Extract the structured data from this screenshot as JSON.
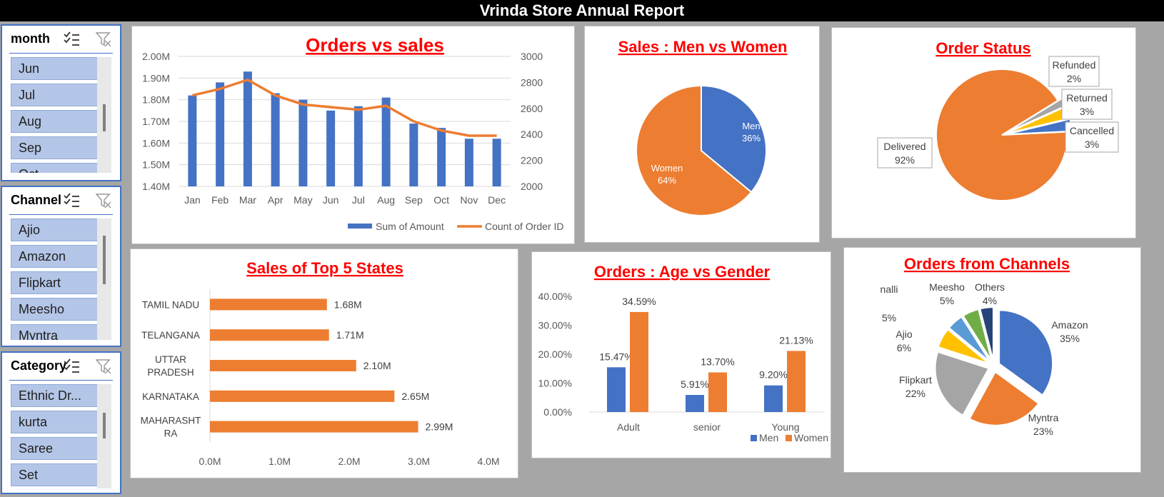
{
  "report_title": "Vrinda Store Annual Report",
  "slicers": {
    "month": {
      "title": "month",
      "items": [
        "Jun",
        "Jul",
        "Aug",
        "Sep",
        "Oct"
      ]
    },
    "channel": {
      "title": "Channel",
      "items": [
        "Ajio",
        "Amazon",
        "Flipkart",
        "Meesho",
        "Myntra"
      ]
    },
    "category": {
      "title": "Category",
      "items": [
        "Ethnic Dr...",
        "kurta",
        "Saree",
        "Set"
      ]
    }
  },
  "colors": {
    "blue": "#4472c4",
    "orange": "#ed7d31",
    "gray": "#a5a5a5",
    "yellow": "#ffc000",
    "lightblue": "#5b9bd5",
    "green": "#70ad47",
    "darkblue": "#264478",
    "title_red": "#ff0000"
  },
  "chart_data": [
    {
      "id": "orders_vs_sales",
      "type": "bar",
      "title": "Orders vs sales",
      "categories": [
        "Jan",
        "Feb",
        "Mar",
        "Apr",
        "May",
        "Jun",
        "Jul",
        "Aug",
        "Sep",
        "Oct",
        "Nov",
        "Dec"
      ],
      "series": [
        {
          "name": "Sum of Amount",
          "kind": "bar",
          "axis": "left",
          "values": [
            1.82,
            1.88,
            1.93,
            1.83,
            1.8,
            1.75,
            1.77,
            1.81,
            1.69,
            1.67,
            1.62,
            1.62
          ]
        },
        {
          "name": "Count of Order ID",
          "kind": "line",
          "axis": "right",
          "values": [
            2700,
            2750,
            2820,
            2700,
            2630,
            2610,
            2590,
            2620,
            2500,
            2430,
            2390,
            2390
          ]
        }
      ],
      "y_left": {
        "min": 1.4,
        "max": 2.0,
        "ticks": [
          "1.40M",
          "1.50M",
          "1.60M",
          "1.70M",
          "1.80M",
          "1.90M",
          "2.00M"
        ]
      },
      "y_right": {
        "min": 2000,
        "max": 3000,
        "ticks": [
          "2000",
          "2200",
          "2400",
          "2600",
          "2800",
          "3000"
        ]
      },
      "legend": "bottom-right"
    },
    {
      "id": "sales_men_women",
      "type": "pie",
      "title": "Sales : Men vs Women",
      "slices": [
        {
          "name": "Men",
          "value": 36,
          "label": "36%"
        },
        {
          "name": "Women",
          "value": 64,
          "label": "64%"
        }
      ]
    },
    {
      "id": "order_status",
      "type": "pie",
      "title": "Order Status",
      "slices": [
        {
          "name": "Delivered",
          "value": 92,
          "label": "92%"
        },
        {
          "name": "Refunded",
          "value": 2,
          "label": "2%"
        },
        {
          "name": "Returned",
          "value": 3,
          "label": "3%"
        },
        {
          "name": "Cancelled",
          "value": 3,
          "label": "3%"
        }
      ]
    },
    {
      "id": "top_states",
      "type": "bar",
      "orientation": "horizontal",
      "title": "Sales of Top 5 States",
      "categories": [
        "TAMIL NADU",
        "TELANGANA",
        "UTTAR PRADESH",
        "KARNATAKA",
        "MAHARASHTRA"
      ],
      "category_labels": [
        [
          "TAMIL NADU"
        ],
        [
          "TELANGANA"
        ],
        [
          "UTTAR",
          "PRADESH"
        ],
        [
          "KARNATAKA"
        ],
        [
          "MAHARASHT",
          "RA"
        ]
      ],
      "values": [
        1.68,
        1.71,
        2.1,
        2.65,
        2.99
      ],
      "data_labels": [
        "1.68M",
        "1.71M",
        "2.10M",
        "2.65M",
        "2.99M"
      ],
      "x_ticks": [
        "0.0M",
        "1.0M",
        "2.0M",
        "3.0M",
        "4.0M"
      ],
      "xlim": [
        0,
        4
      ]
    },
    {
      "id": "age_gender",
      "type": "bar",
      "title": "Orders : Age vs Gender",
      "categories": [
        "Adult",
        "senior",
        "Young"
      ],
      "series": [
        {
          "name": "Men",
          "values": [
            15.47,
            5.91,
            9.2
          ],
          "labels": [
            "15.47%",
            "5.91%",
            "9.20%"
          ]
        },
        {
          "name": "Women",
          "values": [
            34.59,
            13.7,
            21.13
          ],
          "labels": [
            "34.59%",
            "13.70%",
            "21.13%"
          ]
        }
      ],
      "y_ticks": [
        "0.00%",
        "10.00%",
        "20.00%",
        "30.00%",
        "40.00%"
      ],
      "ylim": [
        0,
        40
      ],
      "legend": "bottom-right"
    },
    {
      "id": "channels",
      "type": "pie",
      "title": "Orders from Channels",
      "slices": [
        {
          "name": "Amazon",
          "value": 35,
          "label": "35%"
        },
        {
          "name": "Myntra",
          "value": 23,
          "label": "23%"
        },
        {
          "name": "Flipkart",
          "value": 22,
          "label": "22%"
        },
        {
          "name": "Ajio",
          "value": 6,
          "label": "6%"
        },
        {
          "name": "nalli",
          "value": 5,
          "label": "5%"
        },
        {
          "name": "Meesho",
          "value": 5,
          "label": "5%"
        },
        {
          "name": "Others",
          "value": 4,
          "label": "4%"
        }
      ]
    }
  ]
}
